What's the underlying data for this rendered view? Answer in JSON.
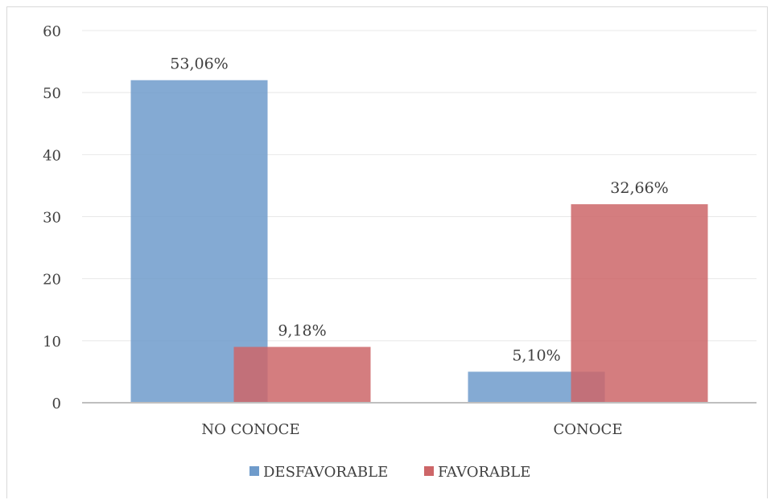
{
  "chart_data": {
    "type": "bar",
    "title": "",
    "xlabel": "",
    "ylabel": "",
    "ylim": [
      0,
      60
    ],
    "yticks": [
      0,
      10,
      20,
      30,
      40,
      50,
      60
    ],
    "categories": [
      "NO CONOCE",
      "CONOCE"
    ],
    "series": [
      {
        "name": "DESFAVORABLE",
        "values": [
          52,
          5
        ],
        "labels": [
          "53,06%",
          "5,10%"
        ],
        "color": "#6f9bcb"
      },
      {
        "name": "FAVORABLE",
        "values": [
          9,
          32
        ],
        "labels": [
          "9,18%",
          "32,66%"
        ],
        "color": "#cd6668"
      }
    ],
    "grid": true,
    "legend": "bottom"
  }
}
